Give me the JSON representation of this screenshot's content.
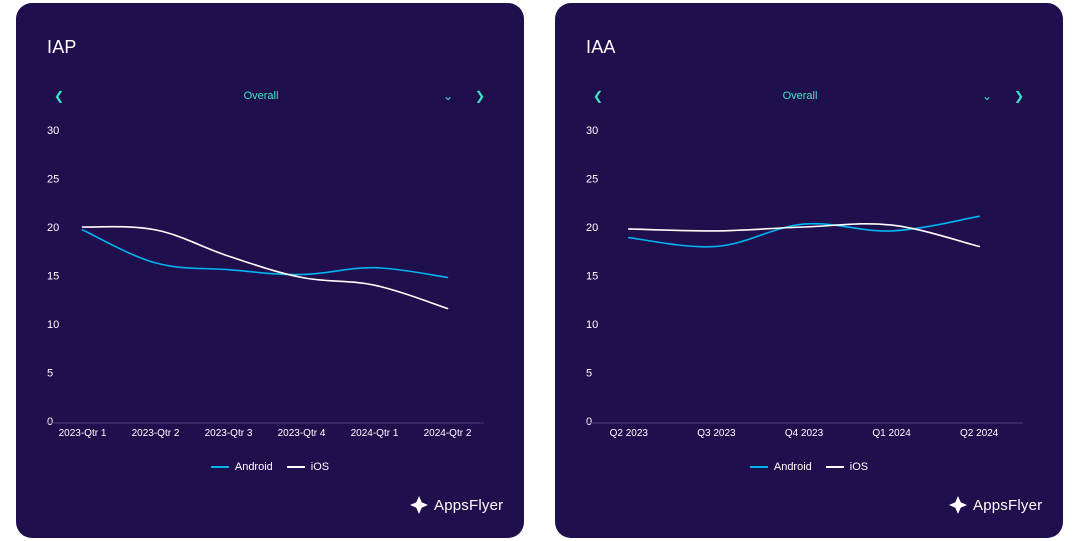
{
  "charts": [
    {
      "key": "iap",
      "title": "IAP",
      "filter": {
        "selected": "Overall"
      },
      "legend": [
        {
          "name": "Android",
          "color": "#00b4f0"
        },
        {
          "name": "iOS",
          "color": "#ffffff"
        }
      ],
      "logo_text": "AppsFlyer"
    },
    {
      "key": "iaa",
      "title": "IAA",
      "filter": {
        "selected": "Overall"
      },
      "legend": [
        {
          "name": "Android",
          "color": "#00b4f0"
        },
        {
          "name": "iOS",
          "color": "#ffffff"
        }
      ],
      "logo_text": "AppsFlyer"
    }
  ],
  "chart_data": [
    {
      "type": "line",
      "title": "IAP",
      "categories": [
        "2023-Qtr 1",
        "2023-Qtr 2",
        "2023-Qtr 3",
        "2023-Qtr 4",
        "2024-Qtr 1",
        "2024-Qtr 2"
      ],
      "ylim": [
        0,
        30
      ],
      "yticks": [
        0,
        5,
        10,
        15,
        20,
        25,
        30
      ],
      "grid": false,
      "legend_position": "bottom",
      "series": [
        {
          "name": "Android",
          "color": "#00b4f0",
          "values": [
            19.7,
            16.3,
            15.6,
            15.1,
            15.8,
            14.8
          ]
        },
        {
          "name": "iOS",
          "color": "#ffffff",
          "values": [
            20.0,
            19.7,
            17.0,
            14.8,
            14.0,
            11.6
          ]
        }
      ]
    },
    {
      "type": "line",
      "title": "IAA",
      "categories": [
        "Q2 2023",
        "Q3 2023",
        "Q4 2023",
        "Q1 2024",
        "Q2 2024"
      ],
      "ylim": [
        0,
        30
      ],
      "yticks": [
        0,
        5,
        10,
        15,
        20,
        25,
        30
      ],
      "grid": false,
      "legend_position": "bottom",
      "series": [
        {
          "name": "Android",
          "color": "#00b4f0",
          "values": [
            18.9,
            18.0,
            20.3,
            19.6,
            21.1
          ]
        },
        {
          "name": "iOS",
          "color": "#ffffff",
          "values": [
            19.8,
            19.6,
            20.0,
            20.2,
            18.0
          ]
        }
      ]
    }
  ],
  "icons": {
    "prev": "chevron-left-icon",
    "next": "chevron-right-icon",
    "dropdown": "chevron-down-icon",
    "logo": "appsflyer-logo-icon"
  }
}
